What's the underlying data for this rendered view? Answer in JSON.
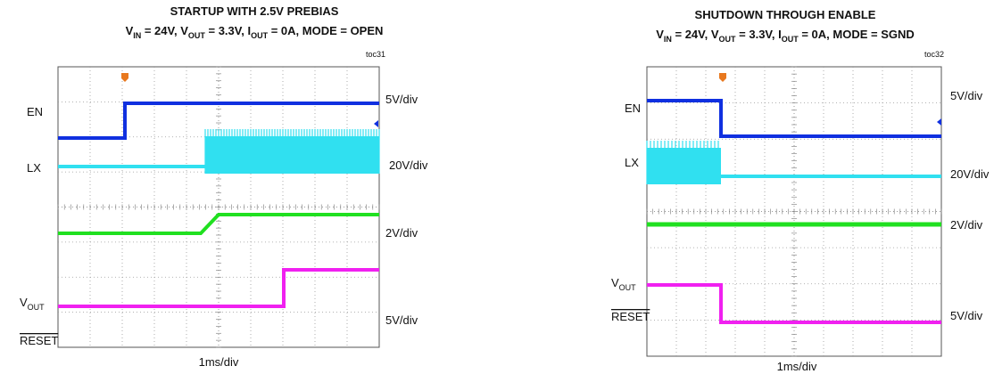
{
  "panels": [
    {
      "title": "STARTUP WITH 2.5V PREBIAS",
      "subtitle": [
        "V",
        "IN",
        " = 24V, V",
        "OUT",
        " = 3.3V, I",
        "OUT",
        " = 0A, MODE = OPEN"
      ],
      "figure_id": "toc31",
      "channels": {
        "en": "EN",
        "lx": "LX",
        "vout": [
          "V",
          "OUT"
        ],
        "reset": "RESET"
      },
      "scales": [
        "5V/div",
        "20V/div",
        "2V/div",
        "5V/div"
      ],
      "timebase": "1ms/div"
    },
    {
      "title": "SHUTDOWN THROUGH ENABLE",
      "subtitle": [
        "V",
        "IN",
        " = 24V, V",
        "OUT",
        " = 3.3V, I",
        "OUT",
        " = 0A, MODE = SGND"
      ],
      "figure_id": "toc32",
      "channels": {
        "en": "EN",
        "lx": "LX",
        "vout": [
          "V",
          "OUT"
        ],
        "reset": "RESET"
      },
      "scales": [
        "5V/div",
        "20V/div",
        "2V/div",
        "5V/div"
      ],
      "timebase": "1ms/div"
    }
  ]
}
